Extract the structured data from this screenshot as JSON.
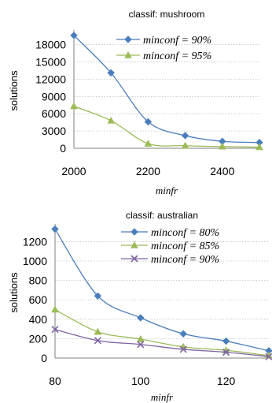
{
  "chart_data": [
    {
      "type": "line",
      "title": "classif: mushroom",
      "xlabel": "minfr",
      "ylabel": "solutions",
      "xlim": [
        2000,
        2500
      ],
      "ylim": [
        0,
        20000
      ],
      "xticks": [
        2000,
        2200,
        2400
      ],
      "yticks": [
        0,
        3000,
        6000,
        9000,
        12000,
        15000,
        18000
      ],
      "grid": true,
      "legend": "top-right",
      "x": [
        2000,
        2100,
        2200,
        2300,
        2400,
        2500
      ],
      "series": [
        {
          "name": "minconf = 90%",
          "color": "#4a7ebb",
          "marker": "diamond",
          "values": [
            19600,
            13100,
            4600,
            2200,
            1200,
            1000
          ]
        },
        {
          "name": "minconf = 95%",
          "color": "#9bbb59",
          "marker": "triangle",
          "values": [
            7300,
            4800,
            800,
            450,
            300,
            200
          ]
        }
      ]
    },
    {
      "type": "line",
      "title": "classif: australian",
      "xlabel": "minfr",
      "ylabel": "solutions",
      "xlim": [
        80,
        130
      ],
      "ylim": [
        0,
        1350
      ],
      "xticks": [
        80,
        100,
        120
      ],
      "yticks": [
        0,
        200,
        400,
        600,
        800,
        1000,
        1200
      ],
      "grid": true,
      "legend": "top-right",
      "x": [
        80,
        90,
        100,
        110,
        120,
        130
      ],
      "series": [
        {
          "name": "minconf = 80%",
          "color": "#4a7ebb",
          "marker": "diamond",
          "values": [
            1330,
            640,
            415,
            250,
            175,
            75
          ]
        },
        {
          "name": "minconf = 85%",
          "color": "#9bbb59",
          "marker": "triangle",
          "values": [
            500,
            270,
            195,
            115,
            80,
            25
          ]
        },
        {
          "name": "minconf = 90%",
          "color": "#8064a2",
          "marker": "x",
          "values": [
            295,
            180,
            140,
            90,
            60,
            15
          ]
        }
      ]
    }
  ]
}
